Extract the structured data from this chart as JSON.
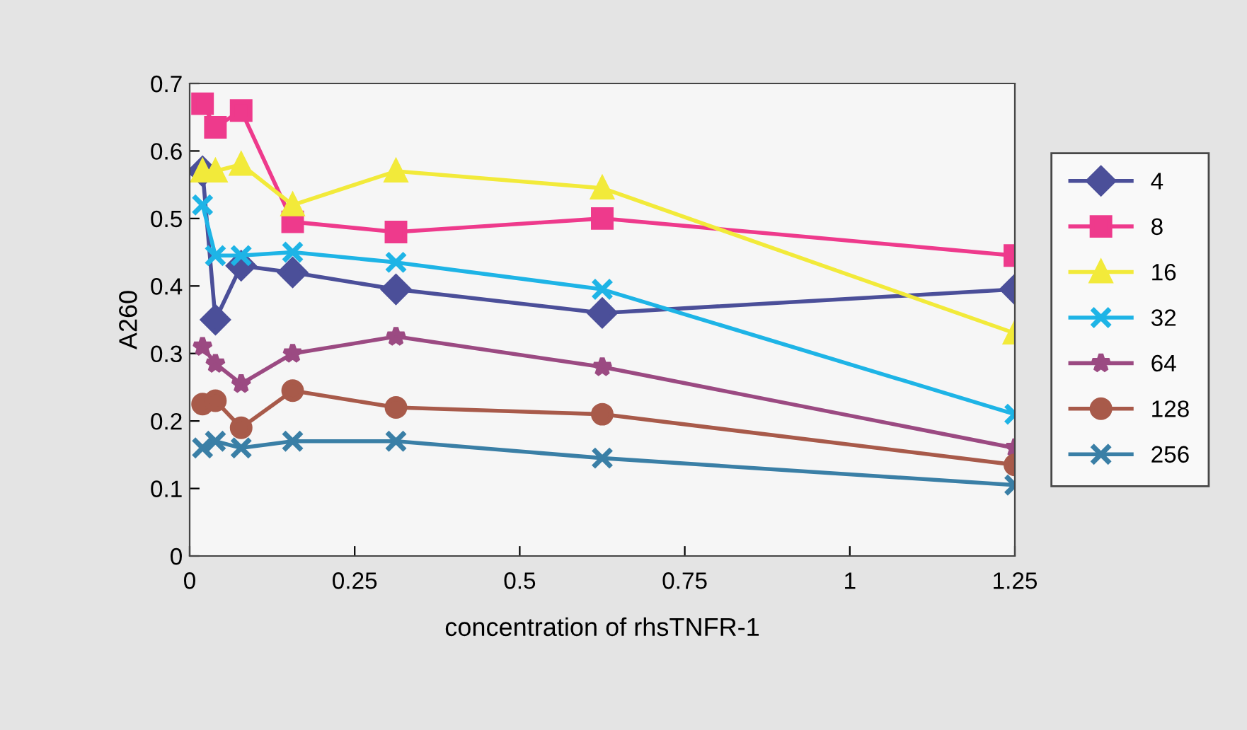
{
  "chart_data": {
    "type": "line",
    "xlabel": "concentration of rhsTNFR-1",
    "ylabel": "A260",
    "x": [
      0.0195,
      0.039,
      0.078,
      0.156,
      0.3125,
      0.625,
      1.25
    ],
    "xlim": [
      0,
      1.25
    ],
    "xticks": [
      0,
      0.25,
      0.5,
      0.75,
      1,
      1.25
    ],
    "ylim": [
      0,
      0.7
    ],
    "yticks": [
      0,
      0.1,
      0.2,
      0.3,
      0.4,
      0.5,
      0.6,
      0.7
    ],
    "grid": false,
    "legend": "right",
    "line_style": "solid",
    "series": [
      {
        "name": "4",
        "color": "#4b4f99",
        "marker": "diamond",
        "values": [
          0.57,
          0.35,
          0.43,
          0.42,
          0.395,
          0.36,
          0.395
        ]
      },
      {
        "name": "8",
        "color": "#ee3a8c",
        "marker": "square",
        "values": [
          0.67,
          0.635,
          0.66,
          0.495,
          0.48,
          0.5,
          0.445
        ]
      },
      {
        "name": "16",
        "color": "#f2ea3a",
        "marker": "triangle",
        "values": [
          0.57,
          0.57,
          0.58,
          0.52,
          0.57,
          0.545,
          0.33
        ]
      },
      {
        "name": "32",
        "color": "#1eb4e6",
        "marker": "cross",
        "values": [
          0.52,
          0.445,
          0.445,
          0.45,
          0.435,
          0.395,
          0.21
        ]
      },
      {
        "name": "64",
        "color": "#9b4a82",
        "marker": "star",
        "values": [
          0.31,
          0.285,
          0.255,
          0.3,
          0.325,
          0.28,
          0.16
        ]
      },
      {
        "name": "128",
        "color": "#a85a4a",
        "marker": "circle",
        "values": [
          0.225,
          0.23,
          0.19,
          0.245,
          0.22,
          0.21,
          0.135
        ]
      },
      {
        "name": "256",
        "color": "#3a7fa6",
        "marker": "cross",
        "values": [
          0.16,
          0.17,
          0.16,
          0.17,
          0.17,
          0.145,
          0.105
        ]
      }
    ]
  }
}
